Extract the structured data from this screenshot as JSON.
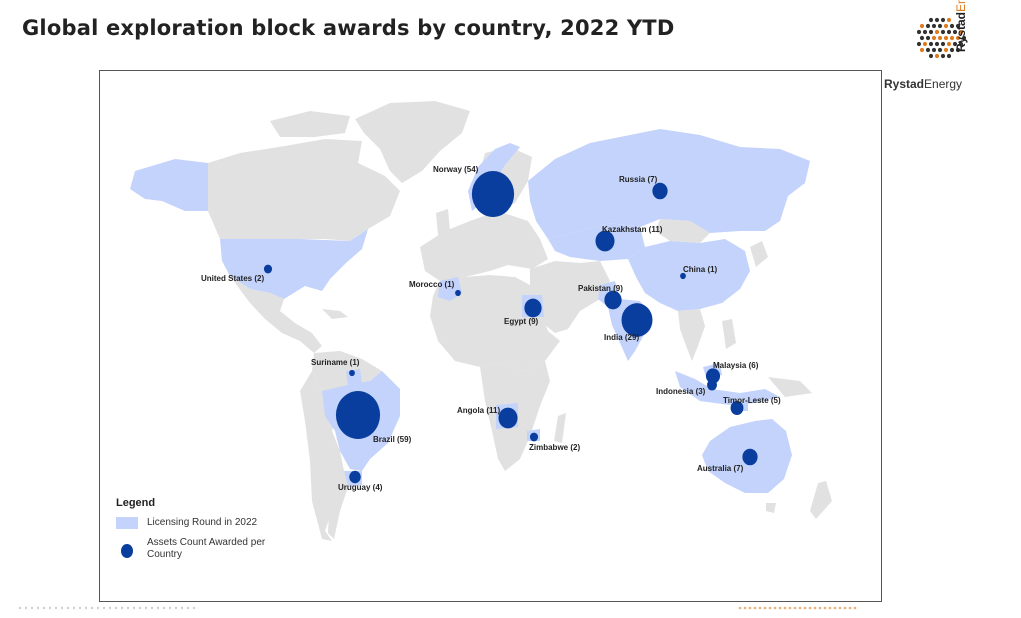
{
  "header": {
    "title": "Global exploration block awards by country, 2022 YTD"
  },
  "brand": {
    "name_part1": "Rystad",
    "name_part2": "Energy",
    "vertical_part1": "Rystad",
    "vertical_part2": "Energy"
  },
  "colors": {
    "land_default": "#e1e1e1",
    "land_licensing": "#c3d3fb",
    "bubble": "#0a3e9e",
    "accent_orange": "#e07b1f"
  },
  "map": {
    "countries": [
      {
        "name": "Norway",
        "label": "Norway (54)",
        "assets_count": 54
      },
      {
        "name": "Russia",
        "label": "Russia (7)",
        "assets_count": 7
      },
      {
        "name": "Kazakhstan",
        "label": "Kazakhstan (11)",
        "assets_count": 11
      },
      {
        "name": "United States",
        "label": "United States (2)",
        "assets_count": 2
      },
      {
        "name": "China",
        "label": "China (1)",
        "assets_count": 1
      },
      {
        "name": "Morocco",
        "label": "Morocco (1)",
        "assets_count": 1
      },
      {
        "name": "Pakistan",
        "label": "Pakistan (9)",
        "assets_count": 9
      },
      {
        "name": "Egypt",
        "label": "Egypt (9)",
        "assets_count": 9
      },
      {
        "name": "India",
        "label": "India (29)",
        "assets_count": 29
      },
      {
        "name": "Suriname",
        "label": "Suriname (1)",
        "assets_count": 1
      },
      {
        "name": "Malaysia",
        "label": "Malaysia (6)",
        "assets_count": 6
      },
      {
        "name": "Indonesia",
        "label": "Indonesia (3)",
        "assets_count": 3
      },
      {
        "name": "Angola",
        "label": "Angola (11)",
        "assets_count": 11
      },
      {
        "name": "Timor-Leste",
        "label": "Timor-Leste (5)",
        "assets_count": 5
      },
      {
        "name": "Brazil",
        "label": "Brazil (59)",
        "assets_count": 59
      },
      {
        "name": "Zimbabwe",
        "label": "Zimbabwe (2)",
        "assets_count": 2
      },
      {
        "name": "Australia",
        "label": "Australia (7)",
        "assets_count": 7
      },
      {
        "name": "Uruguay",
        "label": "Uruguay (4)",
        "assets_count": 4
      }
    ]
  },
  "legend": {
    "title": "Legend",
    "licensing_round": "Licensing Round in 2022",
    "assets_count": "Assets Count Awarded per Country"
  }
}
